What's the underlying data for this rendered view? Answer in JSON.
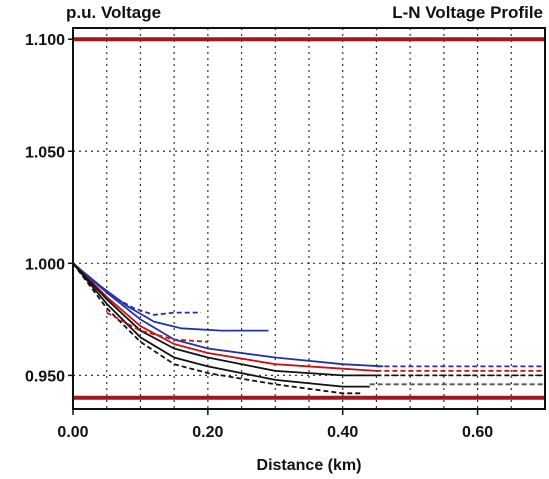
{
  "chart_data": {
    "type": "line",
    "title": "L-N Voltage Profile",
    "ylabel": "p.u. Voltage",
    "xlabel": "Distance (km)",
    "xlim": [
      0,
      0.7
    ],
    "ylim": [
      0.935,
      1.105
    ],
    "xticks": [
      0.0,
      0.2,
      0.4,
      0.6
    ],
    "xtick_labels": [
      "0.00",
      "0.20",
      "0.40",
      "0.60"
    ],
    "yticks": [
      0.95,
      1.0,
      1.05,
      1.1
    ],
    "ytick_labels": [
      "0.950",
      "1.000",
      "1.050",
      "1.100"
    ],
    "grid": true,
    "limits": [
      {
        "value": 1.1,
        "color": "#a01818"
      },
      {
        "value": 0.94,
        "color": "#a01818"
      }
    ],
    "series": [
      {
        "color": "#2233aa",
        "dashed": true,
        "x": [
          0,
          0.03,
          0.06,
          0.09,
          0.12,
          0.15,
          0.19
        ],
        "y": [
          1.0,
          0.992,
          0.985,
          0.98,
          0.977,
          0.978,
          0.978
        ]
      },
      {
        "color": "#2233aa",
        "dashed": false,
        "x": [
          0,
          0.04,
          0.08,
          0.12,
          0.16,
          0.22,
          0.29
        ],
        "y": [
          1.0,
          0.99,
          0.981,
          0.974,
          0.971,
          0.97,
          0.97
        ]
      },
      {
        "color": "#2233aa",
        "dashed": false,
        "x": [
          0,
          0.05,
          0.1,
          0.15,
          0.2,
          0.3,
          0.4,
          0.46
        ],
        "y": [
          1.0,
          0.987,
          0.975,
          0.966,
          0.962,
          0.958,
          0.955,
          0.954
        ]
      },
      {
        "color": "#2233aa",
        "dashed": true,
        "x": [
          0.45,
          0.55,
          0.7
        ],
        "y": [
          0.954,
          0.954,
          0.954
        ]
      },
      {
        "color": "#cc1111",
        "dashed": false,
        "x": [
          0,
          0.05,
          0.1,
          0.15,
          0.2,
          0.3,
          0.4,
          0.45
        ],
        "y": [
          1.0,
          0.985,
          0.972,
          0.964,
          0.96,
          0.955,
          0.953,
          0.952
        ]
      },
      {
        "color": "#cc1111",
        "dashed": true,
        "x": [
          0.45,
          0.55,
          0.7
        ],
        "y": [
          0.952,
          0.952,
          0.952
        ]
      },
      {
        "color": "#111111",
        "dashed": false,
        "x": [
          0,
          0.05,
          0.1,
          0.15,
          0.2,
          0.3,
          0.4,
          0.45
        ],
        "y": [
          1.0,
          0.984,
          0.97,
          0.962,
          0.958,
          0.952,
          0.95,
          0.95
        ]
      },
      {
        "color": "#111111",
        "dashed": true,
        "x": [
          0.45,
          0.55,
          0.7
        ],
        "y": [
          0.95,
          0.95,
          0.95
        ]
      },
      {
        "color": "#111111",
        "dashed": false,
        "x": [
          0,
          0.05,
          0.1,
          0.15,
          0.2,
          0.3,
          0.4,
          0.44
        ],
        "y": [
          1.0,
          0.982,
          0.967,
          0.958,
          0.954,
          0.948,
          0.945,
          0.945
        ]
      },
      {
        "color": "#555555",
        "dashed": true,
        "x": [
          0.44,
          0.55,
          0.7
        ],
        "y": [
          0.946,
          0.946,
          0.946
        ]
      },
      {
        "color": "#111111",
        "dashed": true,
        "x": [
          0,
          0.05,
          0.1,
          0.15,
          0.2,
          0.3,
          0.4,
          0.43
        ],
        "y": [
          1.0,
          0.98,
          0.965,
          0.955,
          0.951,
          0.946,
          0.942,
          0.942
        ]
      },
      {
        "color": "#cc1111",
        "dashed": true,
        "x": [
          0.05,
          0.1,
          0.15,
          0.2
        ],
        "y": [
          0.978,
          0.97,
          0.966,
          0.965
        ]
      }
    ]
  }
}
